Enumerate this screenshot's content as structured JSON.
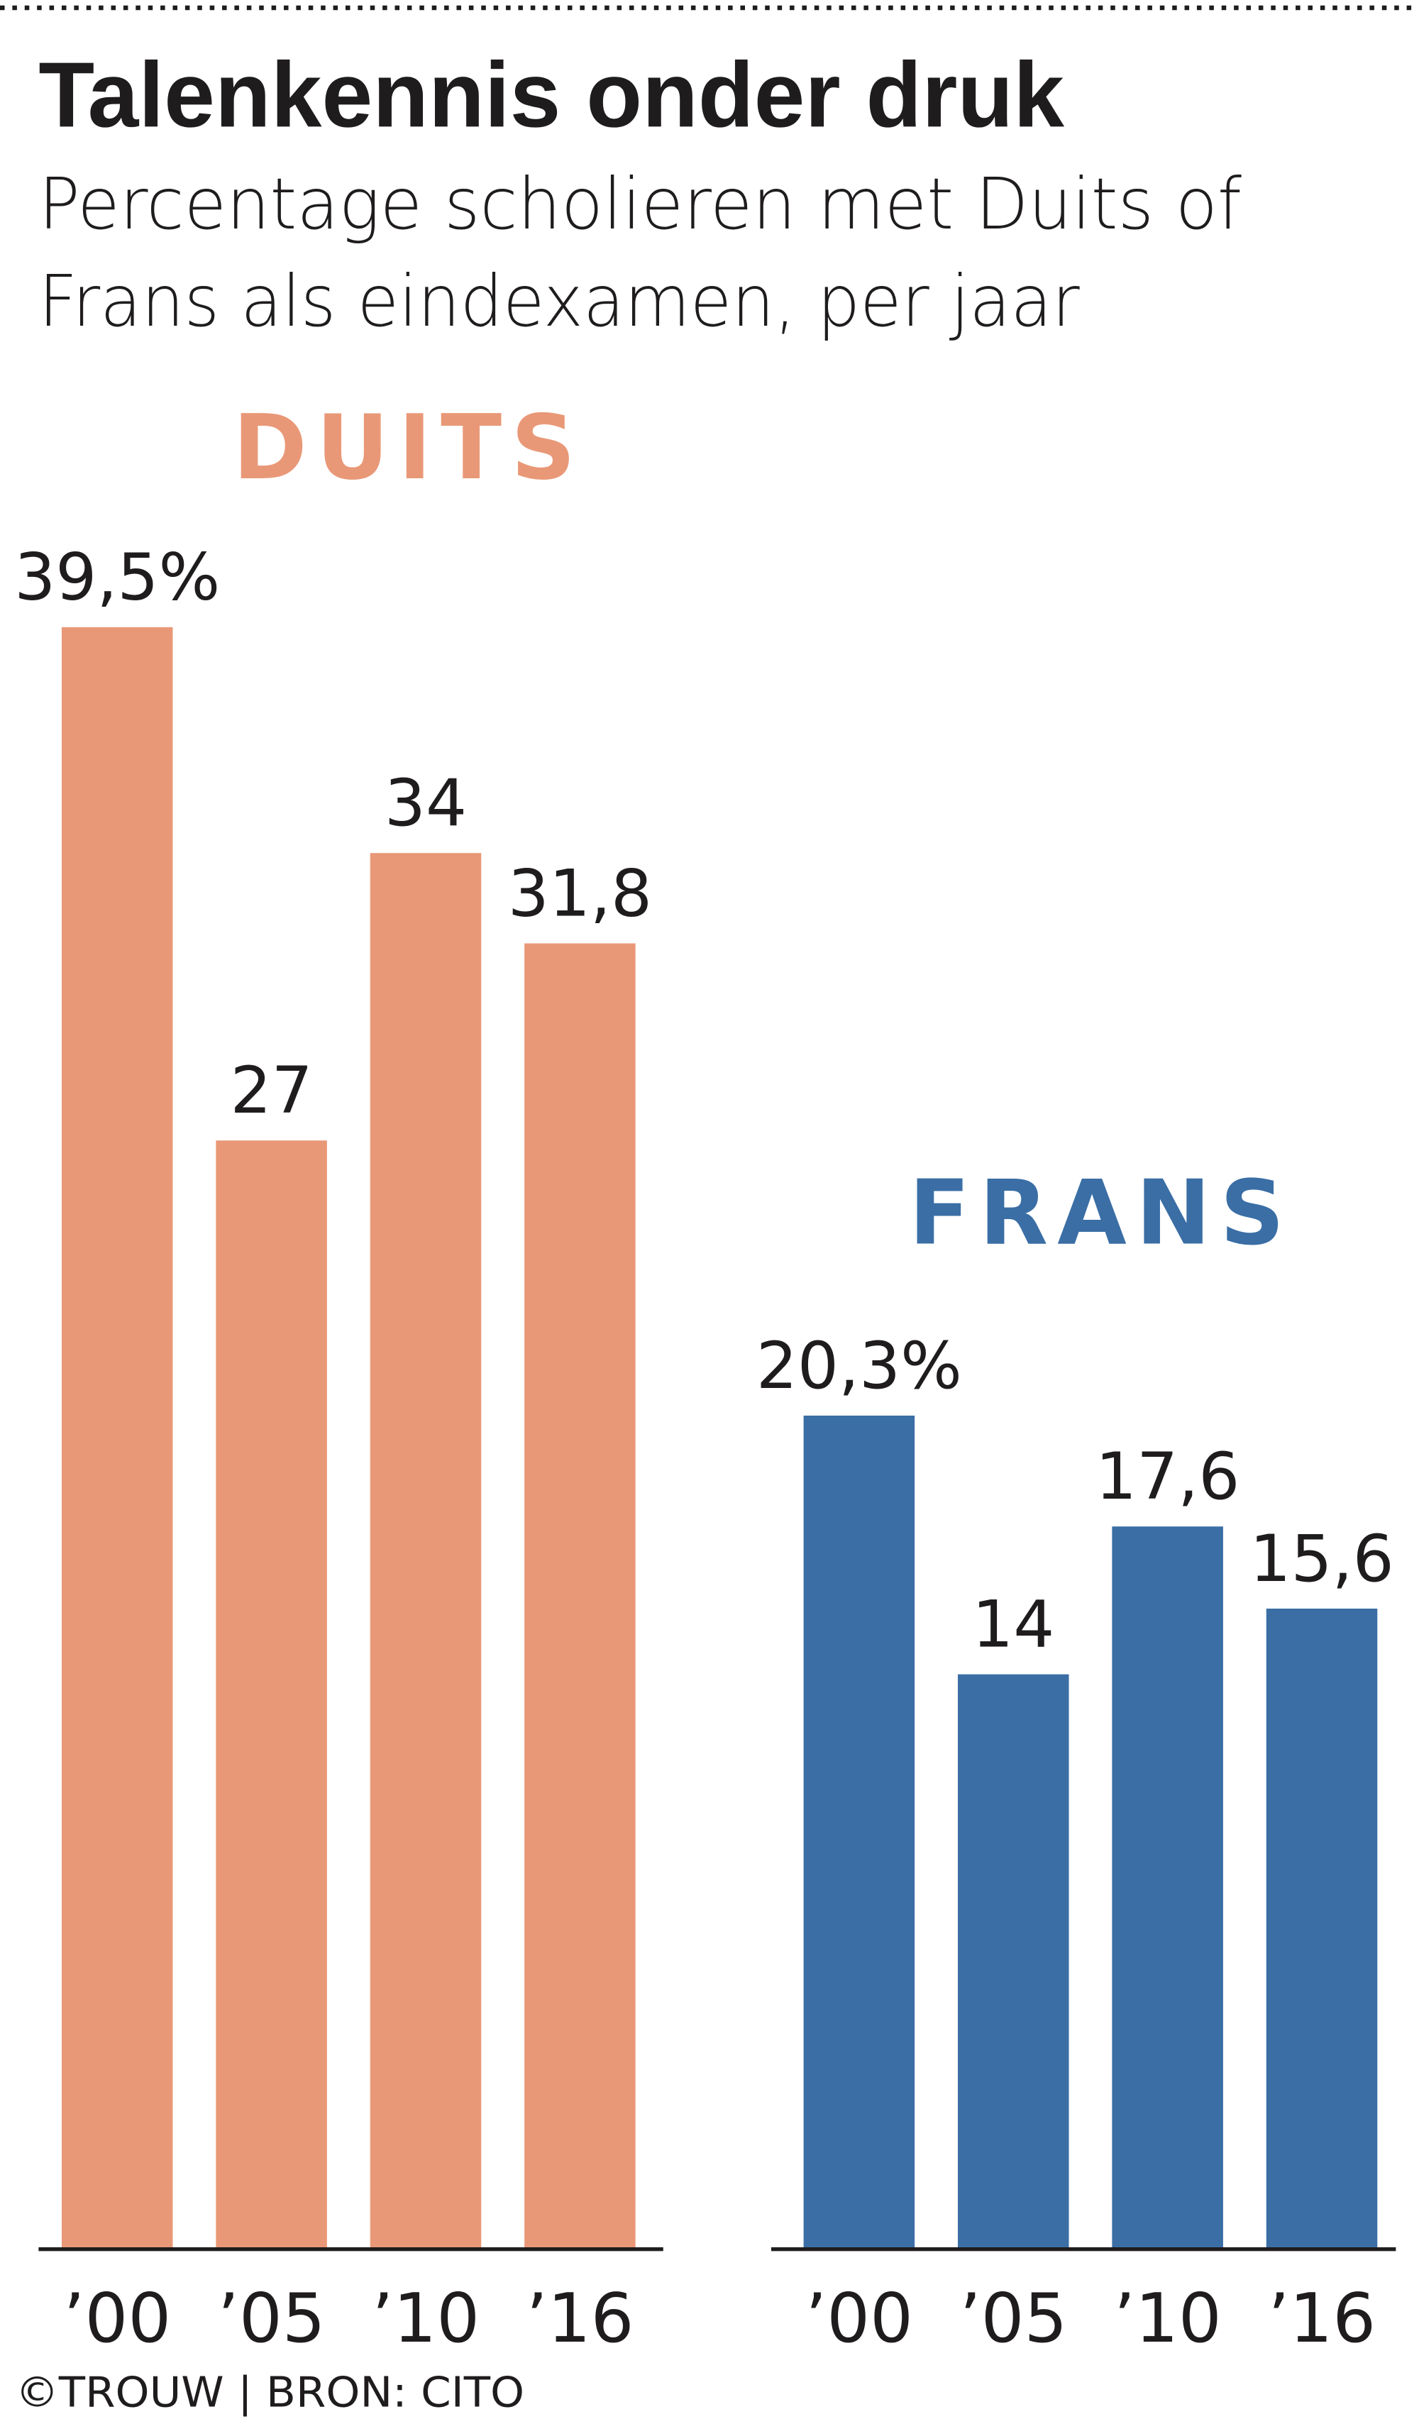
{
  "header": {
    "title": "Talenkennis onder druk",
    "subtitle_line1": "Percentage scholieren met Duits of",
    "subtitle_line2": "Frans als eindexamen, per jaar"
  },
  "footer": {
    "credit": "©TROUW | BRON: CITO"
  },
  "chart_data": [
    {
      "type": "bar",
      "title": "DUITS",
      "color": "#E99877",
      "categories": [
        "’00",
        "’05",
        "’10",
        "’16"
      ],
      "values": [
        39.5,
        27,
        34,
        31.8
      ],
      "value_labels": [
        "39,5%",
        "27",
        "34",
        "31,8"
      ],
      "xlabel": "",
      "ylabel": "",
      "ylim": [
        0,
        40
      ]
    },
    {
      "type": "bar",
      "title": "FRANS",
      "color": "#3A6EA5",
      "categories": [
        "’00",
        "’05",
        "’10",
        "’16"
      ],
      "values": [
        20.3,
        14,
        17.6,
        15.6
      ],
      "value_labels": [
        "20,3%",
        "14",
        "17,6",
        "15,6"
      ],
      "xlabel": "",
      "ylabel": "",
      "ylim": [
        0,
        40
      ]
    }
  ]
}
